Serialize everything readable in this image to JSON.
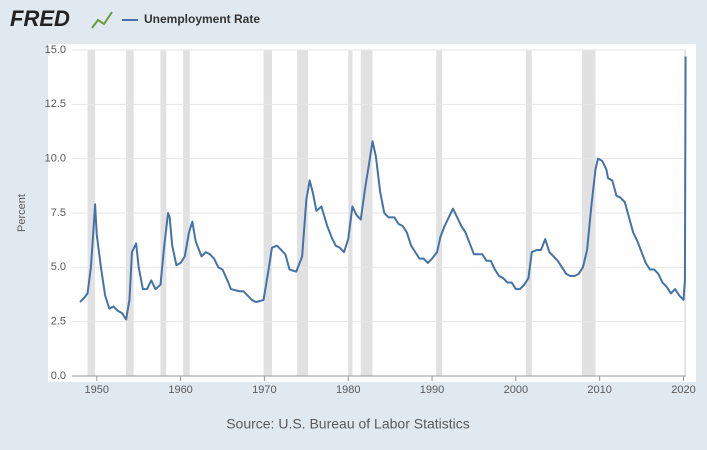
{
  "logo": "FRED",
  "chart_data": {
    "type": "line",
    "y_label": "Percent",
    "source": "Source: U.S. Bureau of Labor Statistics",
    "xlim": [
      1948,
      2020.3
    ],
    "ylim": [
      0,
      15
    ],
    "yticks": [
      {
        "value": 0,
        "label": "0.0"
      },
      {
        "value": 2.5,
        "label": "2.5"
      },
      {
        "value": 5,
        "label": "5.0"
      },
      {
        "value": 7.5,
        "label": "7.5"
      },
      {
        "value": 10,
        "label": "10.0"
      },
      {
        "value": 12.5,
        "label": "12.5"
      },
      {
        "value": 15,
        "label": "15.0"
      }
    ],
    "xticks": [
      1950,
      1960,
      1970,
      1980,
      1990,
      2000,
      2010,
      2020
    ],
    "grid": true,
    "recession_color": "#e1e1e1",
    "recessions": [
      [
        1948.9,
        1949.8
      ],
      [
        1953.5,
        1954.4
      ],
      [
        1957.6,
        1958.3
      ],
      [
        1960.3,
        1961.1
      ],
      [
        1969.9,
        1970.9
      ],
      [
        1973.9,
        1975.2
      ],
      [
        1980.0,
        1980.5
      ],
      [
        1981.5,
        1982.9
      ],
      [
        1990.5,
        1991.2
      ],
      [
        2001.2,
        2001.9
      ],
      [
        2007.9,
        2009.5
      ],
      [
        2020.1,
        2020.3
      ]
    ],
    "x": [
      1948.0,
      1948.5,
      1948.9,
      1949.3,
      1949.6,
      1949.8,
      1950.0,
      1950.5,
      1951.0,
      1951.5,
      1952.0,
      1952.5,
      1953.0,
      1953.5,
      1953.9,
      1954.2,
      1954.7,
      1955.0,
      1955.5,
      1956.0,
      1956.5,
      1957.0,
      1957.6,
      1958.0,
      1958.5,
      1958.7,
      1959.0,
      1959.5,
      1960.0,
      1960.5,
      1961.0,
      1961.4,
      1961.8,
      1962.5,
      1963.0,
      1963.5,
      1964.0,
      1964.5,
      1965.0,
      1965.7,
      1966.0,
      1967.0,
      1967.5,
      1968.0,
      1968.5,
      1969.0,
      1969.9,
      1970.5,
      1970.9,
      1971.5,
      1972.0,
      1972.5,
      1973.0,
      1973.8,
      1974.5,
      1975.0,
      1975.4,
      1975.8,
      1976.2,
      1976.8,
      1977.5,
      1978.0,
      1978.5,
      1979.0,
      1979.5,
      1980.0,
      1980.5,
      1981.0,
      1981.5,
      1982.0,
      1982.5,
      1982.9,
      1983.3,
      1983.8,
      1984.3,
      1984.8,
      1985.5,
      1986.0,
      1986.5,
      1987.0,
      1987.5,
      1988.0,
      1988.5,
      1989.0,
      1989.5,
      1990.0,
      1990.6,
      1991.0,
      1991.5,
      1992.0,
      1992.5,
      1993.0,
      1993.5,
      1994.0,
      1994.5,
      1995.0,
      1996.0,
      1996.5,
      1997.0,
      1997.5,
      1998.0,
      1998.5,
      1999.0,
      1999.5,
      2000.0,
      2000.5,
      2001.0,
      2001.5,
      2001.9,
      2002.5,
      2003.0,
      2003.5,
      2004.0,
      2004.5,
      2005.0,
      2005.5,
      2006.0,
      2006.5,
      2007.0,
      2007.5,
      2008.0,
      2008.5,
      2009.0,
      2009.5,
      2009.8,
      2010.3,
      2010.8,
      2011.0,
      2011.5,
      2012.0,
      2012.5,
      2013.0,
      2013.5,
      2014.0,
      2014.5,
      2015.0,
      2015.5,
      2016.0,
      2016.5,
      2017.0,
      2017.5,
      2018.0,
      2018.5,
      2019.0,
      2019.5,
      2020.0,
      2020.17,
      2020.25
    ],
    "series": [
      {
        "name": "Unemployment Rate",
        "color": "#4572a7",
        "values": [
          3.4,
          3.6,
          3.8,
          5.0,
          6.7,
          7.9,
          6.5,
          5.0,
          3.7,
          3.1,
          3.2,
          3.0,
          2.9,
          2.6,
          3.5,
          5.7,
          6.1,
          5.0,
          4.0,
          4.0,
          4.4,
          4.0,
          4.2,
          5.8,
          7.5,
          7.3,
          6.0,
          5.1,
          5.2,
          5.5,
          6.6,
          7.1,
          6.2,
          5.5,
          5.7,
          5.6,
          5.4,
          5.0,
          4.9,
          4.3,
          4.0,
          3.9,
          3.9,
          3.7,
          3.5,
          3.4,
          3.5,
          4.9,
          5.9,
          6.0,
          5.8,
          5.6,
          4.9,
          4.8,
          5.5,
          8.1,
          9.0,
          8.4,
          7.6,
          7.8,
          6.9,
          6.4,
          6.0,
          5.9,
          5.7,
          6.3,
          7.8,
          7.4,
          7.2,
          8.6,
          9.8,
          10.8,
          10.1,
          8.5,
          7.5,
          7.3,
          7.3,
          7.0,
          6.9,
          6.6,
          6.0,
          5.7,
          5.4,
          5.4,
          5.2,
          5.4,
          5.7,
          6.4,
          6.9,
          7.3,
          7.7,
          7.3,
          6.9,
          6.6,
          6.1,
          5.6,
          5.6,
          5.3,
          5.3,
          4.9,
          4.6,
          4.5,
          4.3,
          4.3,
          4.0,
          4.0,
          4.2,
          4.5,
          5.7,
          5.8,
          5.8,
          6.3,
          5.7,
          5.5,
          5.3,
          5.0,
          4.7,
          4.6,
          4.6,
          4.7,
          5.0,
          5.8,
          7.8,
          9.5,
          10.0,
          9.9,
          9.5,
          9.1,
          9.0,
          8.3,
          8.2,
          8.0,
          7.3,
          6.6,
          6.2,
          5.7,
          5.2,
          4.9,
          4.9,
          4.7,
          4.3,
          4.1,
          3.8,
          4.0,
          3.7,
          3.5,
          4.4,
          14.7
        ]
      }
    ]
  }
}
